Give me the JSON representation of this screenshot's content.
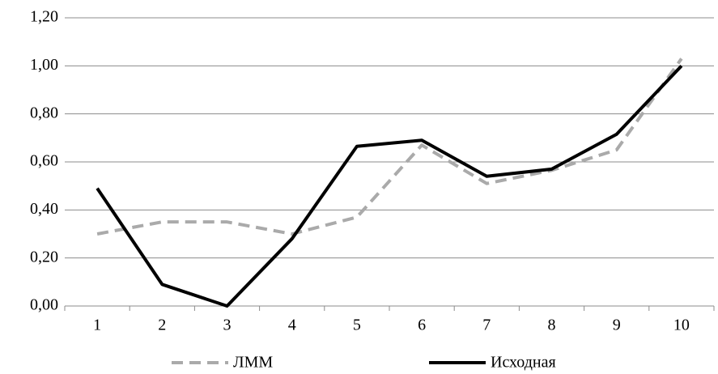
{
  "chart_data": {
    "type": "line",
    "categories": [
      "1",
      "2",
      "3",
      "4",
      "5",
      "6",
      "7",
      "8",
      "9",
      "10"
    ],
    "series": [
      {
        "name": "ЛММ",
        "color": "#aaaaaa",
        "dash": true,
        "values": [
          0.3,
          0.35,
          0.35,
          0.3,
          0.37,
          0.67,
          0.51,
          0.565,
          0.65,
          1.03
        ]
      },
      {
        "name": "Исходная",
        "color": "#000000",
        "dash": false,
        "values": [
          0.49,
          0.09,
          0.0,
          0.28,
          0.665,
          0.69,
          0.54,
          0.57,
          0.715,
          1.0
        ]
      }
    ],
    "ylim": [
      0,
      1.2
    ],
    "yticks": [
      {
        "value": 0,
        "label": "0,00"
      },
      {
        "value": 0.2,
        "label": "0,20"
      },
      {
        "value": 0.4,
        "label": "0,40"
      },
      {
        "value": 0.6,
        "label": "0,60"
      },
      {
        "value": 0.8,
        "label": "0,80"
      },
      {
        "value": 1.0,
        "label": "1,00"
      },
      {
        "value": 1.2,
        "label": "1,20"
      }
    ],
    "grid": true,
    "legend": "bottom"
  }
}
